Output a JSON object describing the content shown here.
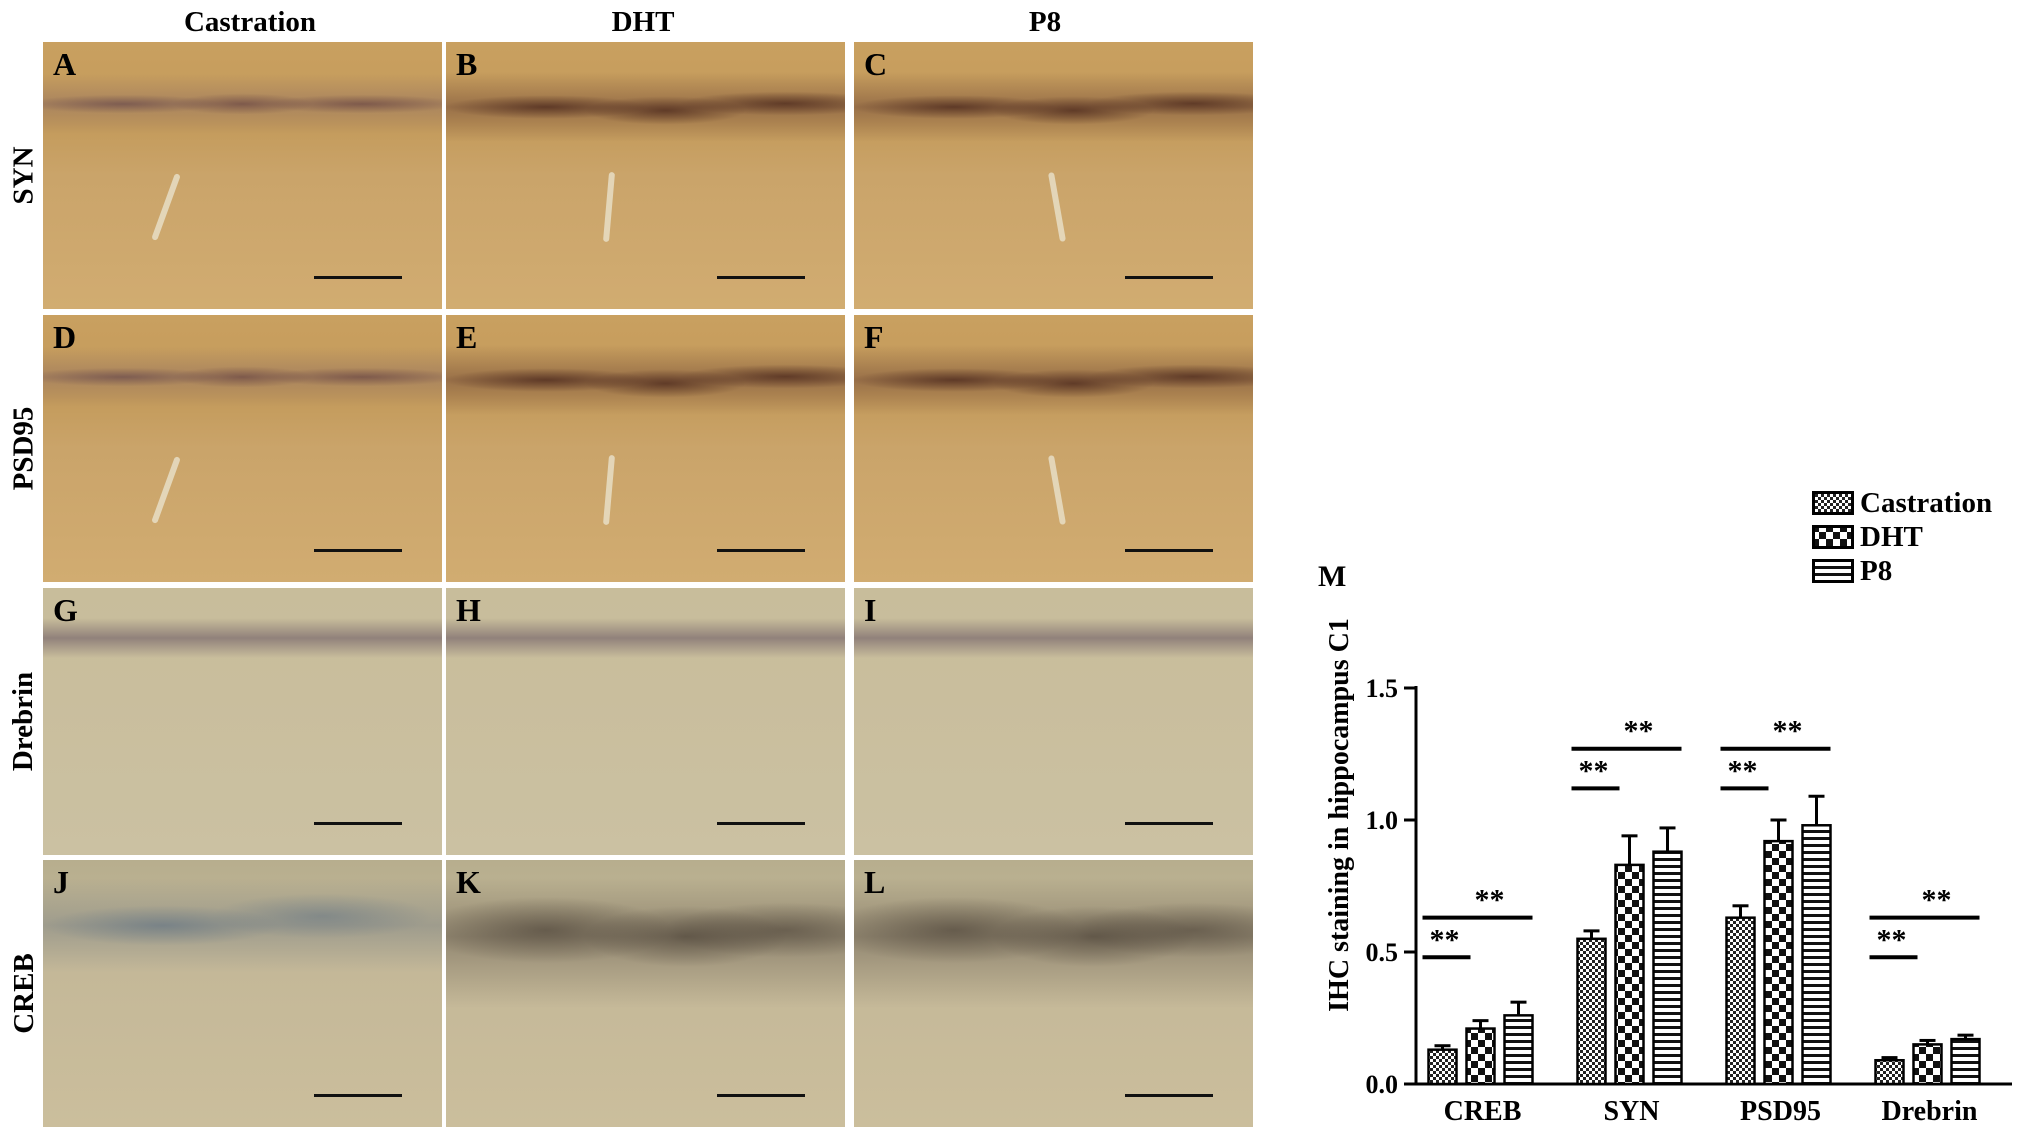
{
  "figure": {
    "columns": [
      "Castration",
      "DHT",
      "P8"
    ],
    "rows": [
      "SYN",
      "PSD95",
      "Drebrin",
      "CREB"
    ],
    "panels": [
      {
        "letter": "A",
        "stain": "brown"
      },
      {
        "letter": "B",
        "stain": "brown-dark"
      },
      {
        "letter": "C",
        "stain": "brown-dark"
      },
      {
        "letter": "D",
        "stain": "brown"
      },
      {
        "letter": "E",
        "stain": "brown-dark"
      },
      {
        "letter": "F",
        "stain": "brown-dark"
      },
      {
        "letter": "G",
        "stain": "pale"
      },
      {
        "letter": "H",
        "stain": "pale"
      },
      {
        "letter": "I",
        "stain": "pale"
      },
      {
        "letter": "J",
        "stain": "creb-blue"
      },
      {
        "letter": "K",
        "stain": "creb-dark"
      },
      {
        "letter": "L",
        "stain": "creb-dark"
      }
    ],
    "panel_m_label": "M"
  },
  "chart_data": {
    "type": "bar",
    "title": "",
    "xlabel": "",
    "ylabel": "IHC staining in hippocampus C1",
    "ylim": [
      0,
      1.5
    ],
    "yticks": [
      "0.0",
      "0.5",
      "1.0",
      "1.5"
    ],
    "categories": [
      "CREB",
      "SYN",
      "PSD95",
      "Drebrin"
    ],
    "series": [
      {
        "name": "Castration",
        "pattern": "dense-check",
        "values": [
          0.13,
          0.55,
          0.63,
          0.09
        ],
        "errors": [
          0.015,
          0.03,
          0.045,
          0.01
        ]
      },
      {
        "name": "DHT",
        "pattern": "checkerboard",
        "values": [
          0.21,
          0.83,
          0.92,
          0.15
        ],
        "errors": [
          0.03,
          0.11,
          0.08,
          0.015
        ]
      },
      {
        "name": "P8",
        "pattern": "horizontal-stripes",
        "values": [
          0.26,
          0.88,
          0.98,
          0.17
        ],
        "errors": [
          0.05,
          0.09,
          0.11,
          0.015
        ]
      }
    ],
    "significance": [
      {
        "category": "CREB",
        "pair": [
          "Castration",
          "DHT"
        ],
        "label": "**"
      },
      {
        "category": "CREB",
        "pair": [
          "Castration",
          "P8"
        ],
        "label": "**"
      },
      {
        "category": "SYN",
        "pair": [
          "Castration",
          "DHT"
        ],
        "label": "**"
      },
      {
        "category": "SYN",
        "pair": [
          "Castration",
          "P8"
        ],
        "label": "**"
      },
      {
        "category": "PSD95",
        "pair": [
          "Castration",
          "DHT"
        ],
        "label": "**"
      },
      {
        "category": "PSD95",
        "pair": [
          "Castration",
          "P8"
        ],
        "label": "**"
      },
      {
        "category": "Drebrin",
        "pair": [
          "Castration",
          "DHT"
        ],
        "label": "**"
      },
      {
        "category": "Drebrin",
        "pair": [
          "Castration",
          "P8"
        ],
        "label": "**"
      }
    ],
    "legend_position": "top-right",
    "grid": false
  }
}
